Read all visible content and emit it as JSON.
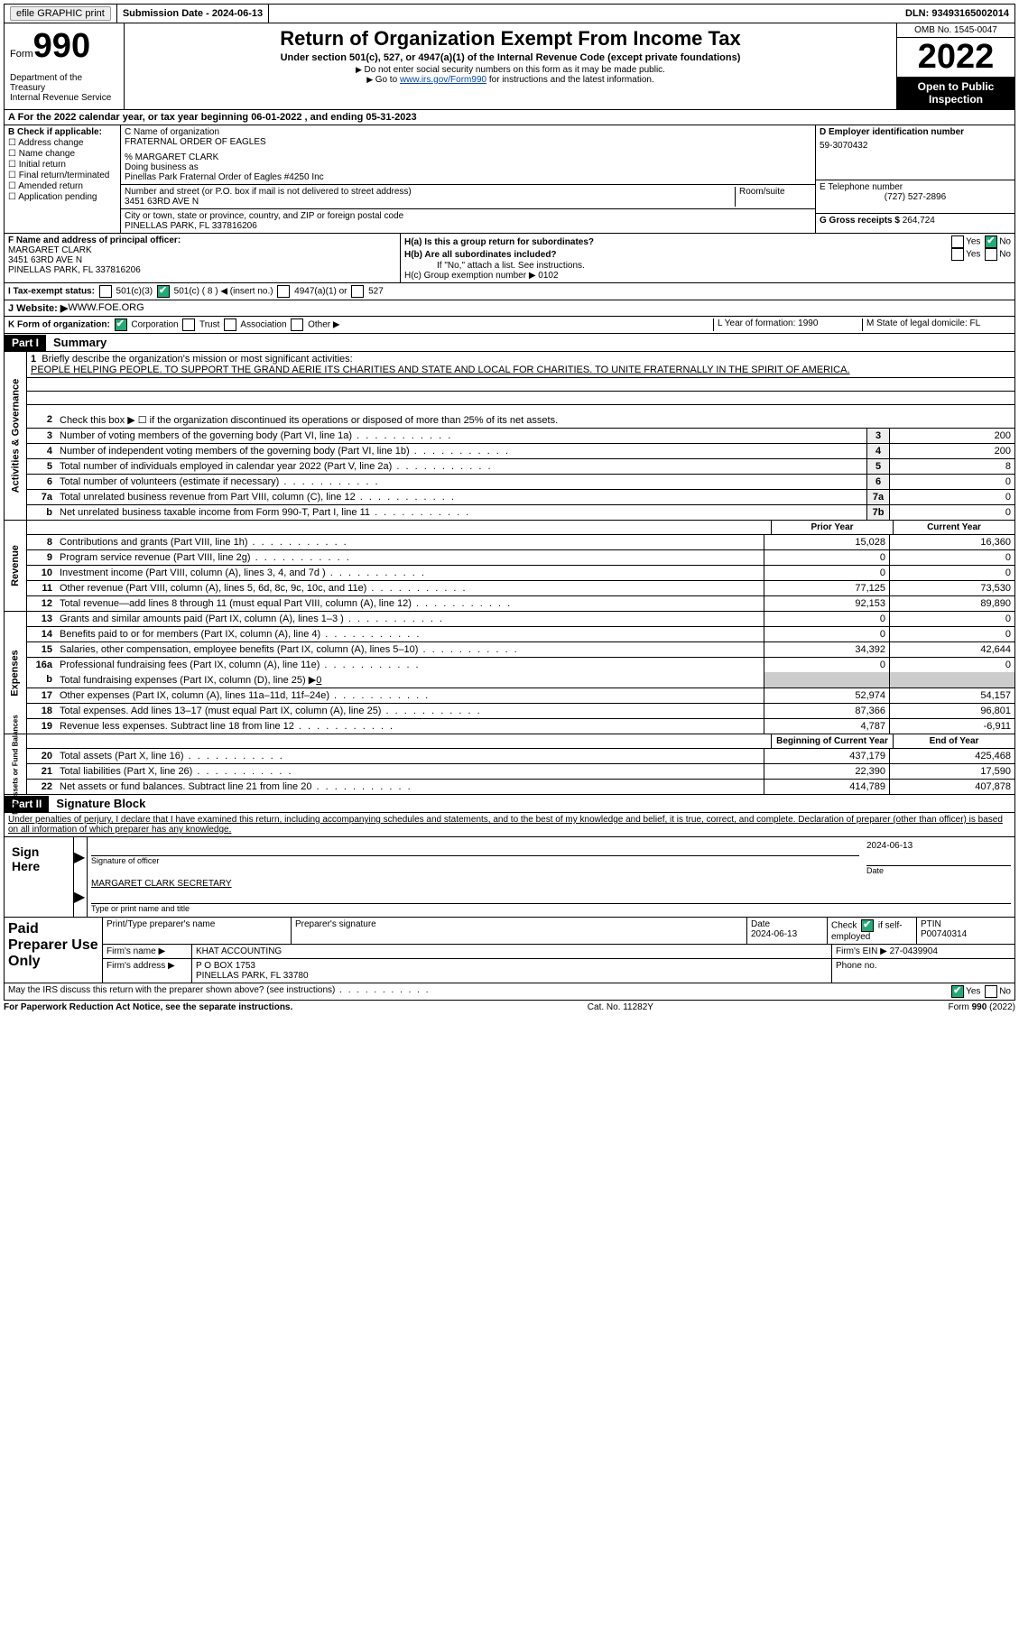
{
  "topbar": {
    "efile": "efile GRAPHIC print",
    "submission": "Submission Date - 2024-06-13",
    "dln": "DLN: 93493165002014"
  },
  "header": {
    "form_label": "Form",
    "form_num": "990",
    "dept": "Department of the Treasury\nInternal Revenue Service",
    "title": "Return of Organization Exempt From Income Tax",
    "subtitle": "Under section 501(c), 527, or 4947(a)(1) of the Internal Revenue Code (except private foundations)",
    "note1": "Do not enter social security numbers on this form as it may be made public.",
    "note2_pre": "Go to ",
    "note2_link": "www.irs.gov/Form990",
    "note2_post": " for instructions and the latest information.",
    "omb": "OMB No. 1545-0047",
    "year": "2022",
    "open": "Open to Public Inspection"
  },
  "A": {
    "text": "A For the 2022 calendar year, or tax year beginning 06-01-2022    , and ending 05-31-2023"
  },
  "B": {
    "label": "B Check if applicable:",
    "opts": [
      "Address change",
      "Name change",
      "Initial return",
      "Final return/terminated",
      "Amended return",
      "Application pending"
    ]
  },
  "C": {
    "name_label": "C Name of organization",
    "name": "FRATERNAL ORDER OF EAGLES",
    "care_of": "% MARGARET CLARK",
    "dba_label": "Doing business as",
    "dba": "Pinellas Park Fraternal Order of Eagles #4250 Inc",
    "street_label": "Number and street (or P.O. box if mail is not delivered to street address)",
    "room_label": "Room/suite",
    "street": "3451 63RD AVE N",
    "city_label": "City or town, state or province, country, and ZIP or foreign postal code",
    "city": "PINELLAS PARK, FL  337816206"
  },
  "D": {
    "ein_label": "D Employer identification number",
    "ein": "59-3070432",
    "phone_label": "E Telephone number",
    "phone": "(727) 527-2896",
    "gross_label": "G Gross receipts $",
    "gross": "264,724"
  },
  "F": {
    "label": "F  Name and address of principal officer:",
    "name": "MARGARET CLARK",
    "street": "3451 63RD AVE N",
    "city": "PINELLAS PARK, FL  337816206"
  },
  "H": {
    "a": "H(a)  Is this a group return for subordinates?",
    "b": "H(b)  Are all subordinates included?",
    "b_note": "If \"No,\" attach a list. See instructions.",
    "c": "H(c)  Group exemption number ▶   0102"
  },
  "I": {
    "label": "I   Tax-exempt status:",
    "insert": "( 8 ) ◀ (insert no.)"
  },
  "J": {
    "label": "J  Website: ▶  ",
    "val": "WWW.FOE.ORG"
  },
  "K": {
    "label": "K Form of organization:",
    "L": "L Year of formation: 1990",
    "M": "M State of legal domicile: FL"
  },
  "part1": {
    "hdr": "Part I",
    "title": "Summary"
  },
  "gov": {
    "vlabel": "Activities & Governance",
    "l1_label": "Briefly describe the organization's mission or most significant activities:",
    "l1_text": "PEOPLE HELPING PEOPLE. TO SUPPORT THE GRAND AERIE ITS CHARITIES AND STATE AND LOCAL FOR CHARITIES. TO UNITE FRATERNALLY IN THE SPIRIT OF AMERICA.",
    "l2": "Check this box ▶ ☐ if the organization discontinued its operations or disposed of more than 25% of its net assets.",
    "lines": [
      {
        "n": "3",
        "t": "Number of voting members of the governing body (Part VI, line 1a)",
        "b": "3",
        "v": "200"
      },
      {
        "n": "4",
        "t": "Number of independent voting members of the governing body (Part VI, line 1b)",
        "b": "4",
        "v": "200"
      },
      {
        "n": "5",
        "t": "Total number of individuals employed in calendar year 2022 (Part V, line 2a)",
        "b": "5",
        "v": "8"
      },
      {
        "n": "6",
        "t": "Total number of volunteers (estimate if necessary)",
        "b": "6",
        "v": "0"
      },
      {
        "n": "7a",
        "t": "Total unrelated business revenue from Part VIII, column (C), line 12",
        "b": "7a",
        "v": "0"
      },
      {
        "n": "b",
        "t": "Net unrelated business taxable income from Form 990-T, Part I, line 11",
        "b": "7b",
        "v": "0"
      }
    ]
  },
  "rev": {
    "vlabel": "Revenue",
    "hdr_prior": "Prior Year",
    "hdr_curr": "Current Year",
    "lines": [
      {
        "n": "8",
        "t": "Contributions and grants (Part VIII, line 1h)",
        "p": "15,028",
        "c": "16,360"
      },
      {
        "n": "9",
        "t": "Program service revenue (Part VIII, line 2g)",
        "p": "0",
        "c": "0"
      },
      {
        "n": "10",
        "t": "Investment income (Part VIII, column (A), lines 3, 4, and 7d )",
        "p": "0",
        "c": "0"
      },
      {
        "n": "11",
        "t": "Other revenue (Part VIII, column (A), lines 5, 6d, 8c, 9c, 10c, and 11e)",
        "p": "77,125",
        "c": "73,530"
      },
      {
        "n": "12",
        "t": "Total revenue—add lines 8 through 11 (must equal Part VIII, column (A), line 12)",
        "p": "92,153",
        "c": "89,890"
      }
    ]
  },
  "exp": {
    "vlabel": "Expenses",
    "lines": [
      {
        "n": "13",
        "t": "Grants and similar amounts paid (Part IX, column (A), lines 1–3 )",
        "p": "0",
        "c": "0"
      },
      {
        "n": "14",
        "t": "Benefits paid to or for members (Part IX, column (A), line 4)",
        "p": "0",
        "c": "0"
      },
      {
        "n": "15",
        "t": "Salaries, other compensation, employee benefits (Part IX, column (A), lines 5–10)",
        "p": "34,392",
        "c": "42,644"
      },
      {
        "n": "16a",
        "t": "Professional fundraising fees (Part IX, column (A), line 11e)",
        "p": "0",
        "c": "0"
      }
    ],
    "l16b": "Total fundraising expenses (Part IX, column (D), line 25) ▶",
    "l16b_val": "0",
    "lines2": [
      {
        "n": "17",
        "t": "Other expenses (Part IX, column (A), lines 11a–11d, 11f–24e)",
        "p": "52,974",
        "c": "54,157"
      },
      {
        "n": "18",
        "t": "Total expenses. Add lines 13–17 (must equal Part IX, column (A), line 25)",
        "p": "87,366",
        "c": "96,801"
      },
      {
        "n": "19",
        "t": "Revenue less expenses. Subtract line 18 from line 12",
        "p": "4,787",
        "c": "-6,911"
      }
    ]
  },
  "net": {
    "vlabel": "Net Assets or Fund Balances",
    "hdr_beg": "Beginning of Current Year",
    "hdr_end": "End of Year",
    "lines": [
      {
        "n": "20",
        "t": "Total assets (Part X, line 16)",
        "p": "437,179",
        "c": "425,468"
      },
      {
        "n": "21",
        "t": "Total liabilities (Part X, line 26)",
        "p": "22,390",
        "c": "17,590"
      },
      {
        "n": "22",
        "t": "Net assets or fund balances. Subtract line 21 from line 20",
        "p": "414,789",
        "c": "407,878"
      }
    ]
  },
  "part2": {
    "hdr": "Part II",
    "title": "Signature Block",
    "decl": "Under penalties of perjury, I declare that I have examined this return, including accompanying schedules and statements, and to the best of my knowledge and belief, it is true, correct, and complete. Declaration of preparer (other than officer) is based on all information of which preparer has any knowledge."
  },
  "sign": {
    "label": "Sign Here",
    "sig_of": "Signature of officer",
    "date": "2024-06-13",
    "date_label": "Date",
    "name": "MARGARET CLARK  SECRETARY",
    "name_label": "Type or print name and title"
  },
  "paid": {
    "label": "Paid Preparer Use Only",
    "r1": {
      "c1": "Print/Type preparer's name",
      "c2": "Preparer's signature",
      "c3": "Date\n2024-06-13",
      "c4": "Check ☑ if self-employed",
      "c5": "PTIN\nP00740314"
    },
    "r2": {
      "c1": "Firm's name    ▶",
      "c2": "KHAT ACCOUNTING",
      "c3": "Firm's EIN ▶",
      "c4": "27-0439904"
    },
    "r3": {
      "c1": "Firm's address ▶",
      "c2": "P O BOX 1753\nPINELLAS PARK, FL  33780",
      "c3": "Phone no."
    }
  },
  "discuss": "May the IRS discuss this return with the preparer shown above? (see instructions)",
  "footer": {
    "l": "For Paperwork Reduction Act Notice, see the separate instructions.",
    "c": "Cat. No. 11282Y",
    "r": "Form 990 (2022)"
  }
}
